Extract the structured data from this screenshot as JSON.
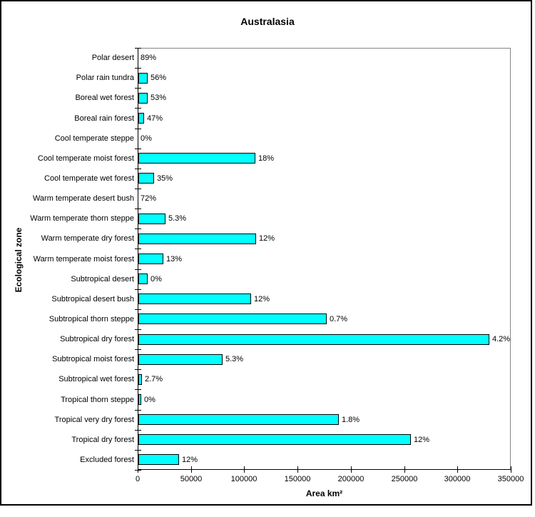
{
  "chart_data": {
    "type": "bar",
    "orientation": "horizontal",
    "title": "Australasia",
    "xlabel": "Area km²",
    "ylabel": "Ecological zone",
    "xlim": [
      0,
      350000
    ],
    "xticks": [
      0,
      50000,
      100000,
      150000,
      200000,
      250000,
      300000,
      350000
    ],
    "grid": false,
    "legend": false,
    "bar_color": "#00FFFF",
    "bar_border_color": "#000000",
    "plot_border_color": "#848484",
    "axis_color": "#000000",
    "categories": [
      "Polar desert",
      "Polar rain tundra",
      "Boreal wet forest",
      "Boreal rain forest",
      "Cool temperate steppe",
      "Cool temperate moist forest",
      "Cool temperate wet forest",
      "Warm temperate desert bush",
      "Warm temperate thorn steppe",
      "Warm temperate dry forest",
      "Warm temperate moist forest",
      "Subtropical desert",
      "Subtropical desert bush",
      "Subtropical thorn steppe",
      "Subtropical dry forest",
      "Subtropical moist forest",
      "Subtropical wet forest",
      "Tropical thorn steppe",
      "Tropical very dry forest",
      "Tropical dry forest",
      "Excluded forest"
    ],
    "values": [
      0,
      8700,
      8700,
      5400,
      0,
      110000,
      14700,
      0,
      25400,
      110400,
      23400,
      8700,
      105700,
      176700,
      329200,
      79000,
      3300,
      2700,
      188000,
      255600,
      38100
    ],
    "bar_labels": [
      "89%",
      "56%",
      "53%",
      "47%",
      "0%",
      "18%",
      "35%",
      "72%",
      "5.3%",
      "12%",
      "13%",
      "0%",
      "12%",
      "0.7%",
      "4.2%",
      "5.3%",
      "2.7%",
      "0%",
      "1.8%",
      "12%",
      "12%"
    ]
  }
}
